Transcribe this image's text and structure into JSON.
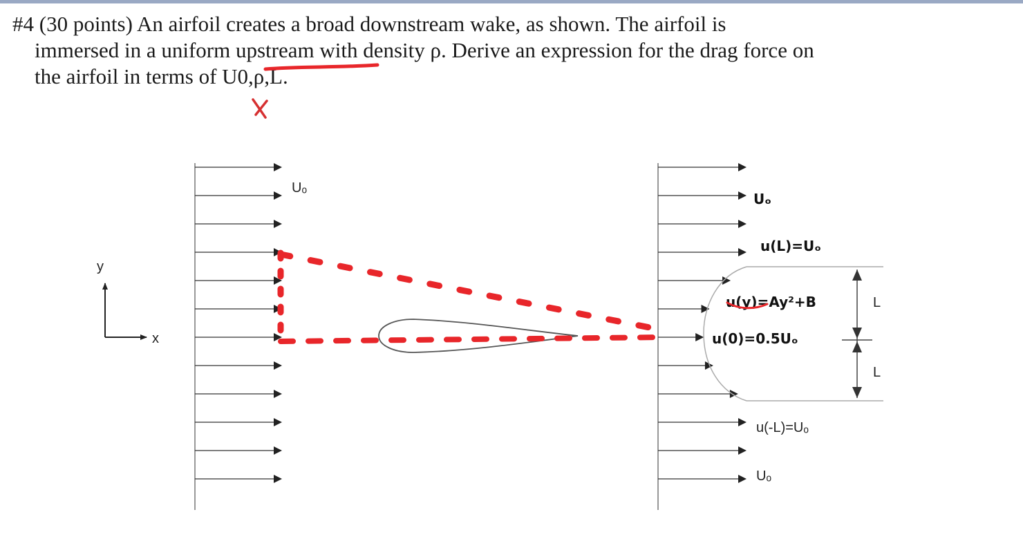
{
  "problem": {
    "line1": "#4 (30 points) An airfoil creates a broad downstream wake, as shown. The airfoil is",
    "line2": "immersed in a uniform upstream with density ρ. Derive an expression for the drag force on",
    "line3": "the airfoil in terms of U0,ρ,L."
  },
  "figure": {
    "upstream_label": "Uₒ",
    "axis_y": "y",
    "axis_x": "x",
    "dimension_label": "L",
    "bottom_label": "u(-L)=Uₒ",
    "bottom_free_stream": "Uₒ",
    "handwritten": {
      "top_free_stream": "Uₒ",
      "wake_top": "u(L)=Uₒ",
      "wake_profile": "u(y)=Ay²+B",
      "wake_center": "u(0)=0.5Uₒ"
    },
    "colors": {
      "annotation": "#e8262a",
      "lines": "#333333"
    }
  }
}
